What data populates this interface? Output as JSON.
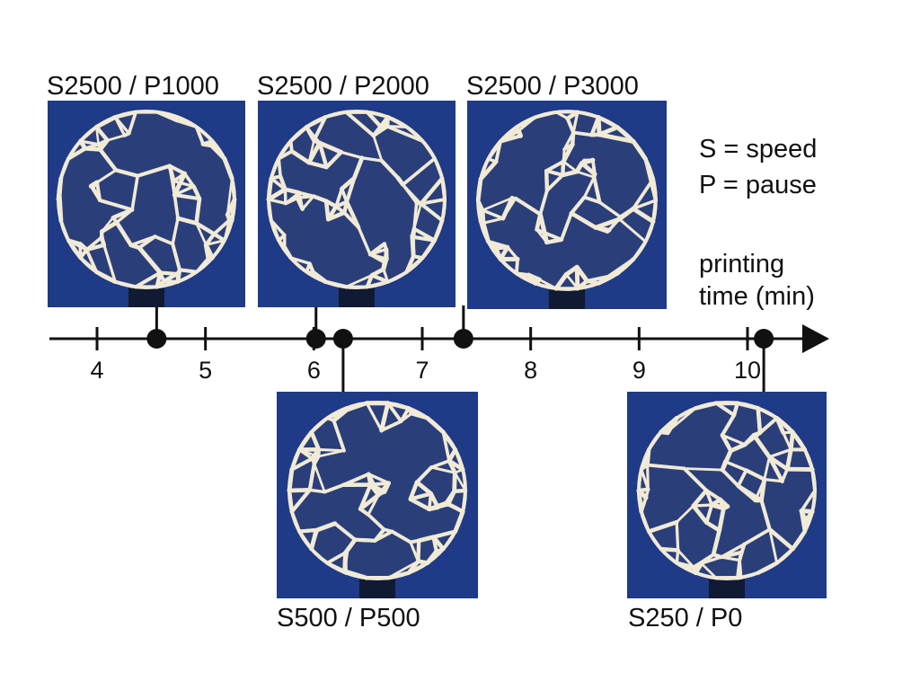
{
  "legend": {
    "speed": "S = speed",
    "pause": "P = pause"
  },
  "axis": {
    "label_line1": "printing",
    "label_line2": "time (min)",
    "ticks": [
      "4",
      "5",
      "6",
      "7",
      "8",
      "9",
      "10"
    ],
    "min": 3.5,
    "max": 10.7
  },
  "prints": [
    {
      "label": "S2500 / P1000",
      "time_min": 4.55,
      "side": "top"
    },
    {
      "label": "S2500 / P2000",
      "time_min": 6.02,
      "side": "top"
    },
    {
      "label": "S500 / P500",
      "time_min": 6.27,
      "side": "bottom"
    },
    {
      "label": "S2500 / P3000",
      "time_min": 7.38,
      "side": "top"
    },
    {
      "label": "S250 / P0",
      "time_min": 10.15,
      "side": "bottom"
    }
  ],
  "colors": {
    "photo_background": "#1f3a86",
    "sphere_strands": "#f1ead6",
    "axis": "#111111"
  }
}
